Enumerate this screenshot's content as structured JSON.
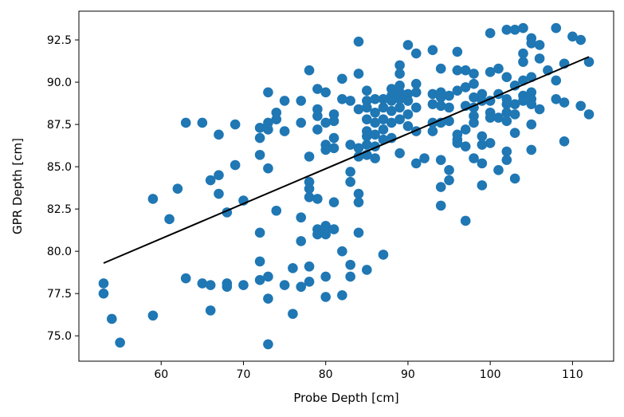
{
  "chart_data": {
    "type": "scatter",
    "title": "",
    "xlabel": "Probe Depth [cm]",
    "ylabel": "GPR Depth [cm]",
    "xlim": [
      50,
      115
    ],
    "ylim": [
      73.5,
      94.2
    ],
    "xticks": [
      60,
      70,
      80,
      90,
      100,
      110
    ],
    "yticks": [
      75.0,
      77.5,
      80.0,
      82.5,
      85.0,
      87.5,
      90.0,
      92.5
    ],
    "grid": false,
    "legend": "none",
    "colors": {
      "points": "#1f77b4",
      "fit_line": "#000000",
      "axes": "#000000"
    },
    "series": [
      {
        "values": [
          [
            53,
            78.1
          ],
          [
            53,
            77.5
          ],
          [
            54,
            76.0
          ],
          [
            55,
            74.6
          ],
          [
            59,
            83.1
          ],
          [
            59,
            76.2
          ],
          [
            61,
            81.9
          ],
          [
            62,
            83.7
          ],
          [
            63,
            87.6
          ],
          [
            63,
            78.4
          ],
          [
            65,
            87.6
          ],
          [
            65,
            78.1
          ],
          [
            66,
            84.2
          ],
          [
            66,
            78.0
          ],
          [
            66,
            76.5
          ],
          [
            67,
            86.9
          ],
          [
            67,
            84.5
          ],
          [
            67,
            83.4
          ],
          [
            68,
            82.3
          ],
          [
            68,
            78.1
          ],
          [
            68,
            77.9
          ],
          [
            69,
            87.5
          ],
          [
            69,
            85.1
          ],
          [
            70,
            83.0
          ],
          [
            70,
            78.0
          ],
          [
            72,
            87.3
          ],
          [
            72,
            86.7
          ],
          [
            72,
            85.7
          ],
          [
            72,
            81.1
          ],
          [
            72,
            79.4
          ],
          [
            72,
            78.3
          ],
          [
            73,
            89.4
          ],
          [
            73,
            87.6
          ],
          [
            73,
            87.2
          ],
          [
            73,
            84.9
          ],
          [
            73,
            78.5
          ],
          [
            73,
            77.2
          ],
          [
            73,
            74.5
          ],
          [
            74,
            88.2
          ],
          [
            74,
            87.8
          ],
          [
            74,
            82.4
          ],
          [
            75,
            88.9
          ],
          [
            75,
            87.1
          ],
          [
            75,
            78.0
          ],
          [
            76,
            79.0
          ],
          [
            76,
            76.3
          ],
          [
            77,
            88.9
          ],
          [
            77,
            87.6
          ],
          [
            77,
            82.0
          ],
          [
            77,
            80.6
          ],
          [
            77,
            77.9
          ],
          [
            78,
            90.7
          ],
          [
            78,
            85.6
          ],
          [
            78,
            84.1
          ],
          [
            78,
            83.7
          ],
          [
            78,
            83.2
          ],
          [
            78,
            79.1
          ],
          [
            78,
            78.2
          ],
          [
            79,
            89.6
          ],
          [
            79,
            88.4
          ],
          [
            79,
            88.0
          ],
          [
            79,
            87.2
          ],
          [
            79,
            83.1
          ],
          [
            79,
            81.3
          ],
          [
            79,
            81.0
          ],
          [
            80,
            89.4
          ],
          [
            80,
            87.6
          ],
          [
            80,
            86.3
          ],
          [
            80,
            86.0
          ],
          [
            80,
            81.5
          ],
          [
            80,
            81.2
          ],
          [
            80,
            81.0
          ],
          [
            80,
            78.5
          ],
          [
            80,
            77.3
          ],
          [
            81,
            88.1
          ],
          [
            81,
            87.7
          ],
          [
            81,
            86.7
          ],
          [
            81,
            86.1
          ],
          [
            81,
            82.9
          ],
          [
            81,
            81.3
          ],
          [
            82,
            90.2
          ],
          [
            82,
            89.0
          ],
          [
            82,
            80.0
          ],
          [
            82,
            77.4
          ],
          [
            83,
            88.9
          ],
          [
            83,
            86.3
          ],
          [
            83,
            84.7
          ],
          [
            83,
            84.1
          ],
          [
            83,
            79.2
          ],
          [
            83,
            78.5
          ],
          [
            84,
            92.4
          ],
          [
            84,
            90.5
          ],
          [
            84,
            88.4
          ],
          [
            84,
            86.1
          ],
          [
            84,
            85.6
          ],
          [
            84,
            83.4
          ],
          [
            84,
            82.9
          ],
          [
            84,
            81.1
          ],
          [
            85,
            89.5
          ],
          [
            85,
            88.9
          ],
          [
            85,
            88.5
          ],
          [
            85,
            87.8
          ],
          [
            85,
            87.1
          ],
          [
            85,
            86.8
          ],
          [
            85,
            86.3
          ],
          [
            85,
            85.7
          ],
          [
            85,
            78.9
          ],
          [
            86,
            89.0
          ],
          [
            86,
            88.2
          ],
          [
            86,
            87.6
          ],
          [
            86,
            86.9
          ],
          [
            86,
            86.2
          ],
          [
            86,
            85.5
          ],
          [
            87,
            89.0
          ],
          [
            87,
            88.5
          ],
          [
            87,
            87.8
          ],
          [
            87,
            87.2
          ],
          [
            87,
            86.6
          ],
          [
            87,
            79.8
          ],
          [
            88,
            89.6
          ],
          [
            88,
            89.2
          ],
          [
            88,
            88.9
          ],
          [
            88,
            88.3
          ],
          [
            88,
            87.6
          ],
          [
            88,
            86.7
          ],
          [
            89,
            91.0
          ],
          [
            89,
            90.5
          ],
          [
            89,
            89.8
          ],
          [
            89,
            89.4
          ],
          [
            89,
            89.0
          ],
          [
            89,
            88.5
          ],
          [
            89,
            87.8
          ],
          [
            89,
            85.8
          ],
          [
            90,
            92.2
          ],
          [
            90,
            89.3
          ],
          [
            90,
            88.9
          ],
          [
            90,
            88.1
          ],
          [
            90,
            87.4
          ],
          [
            91,
            91.7
          ],
          [
            91,
            89.9
          ],
          [
            91,
            89.4
          ],
          [
            91,
            88.5
          ],
          [
            91,
            87.1
          ],
          [
            91,
            85.2
          ],
          [
            92,
            85.5
          ],
          [
            93,
            91.9
          ],
          [
            93,
            89.3
          ],
          [
            93,
            88.7
          ],
          [
            93,
            87.6
          ],
          [
            93,
            87.1
          ],
          [
            94,
            90.8
          ],
          [
            94,
            89.4
          ],
          [
            94,
            89.1
          ],
          [
            94,
            88.6
          ],
          [
            94,
            87.6
          ],
          [
            94,
            85.4
          ],
          [
            94,
            83.8
          ],
          [
            94,
            82.7
          ],
          [
            95,
            89.2
          ],
          [
            95,
            88.5
          ],
          [
            95,
            87.7
          ],
          [
            95,
            84.8
          ],
          [
            95,
            84.2
          ],
          [
            96,
            91.8
          ],
          [
            96,
            90.7
          ],
          [
            96,
            89.5
          ],
          [
            96,
            86.9
          ],
          [
            96,
            86.6
          ],
          [
            96,
            86.4
          ],
          [
            97,
            90.7
          ],
          [
            97,
            89.7
          ],
          [
            97,
            88.6
          ],
          [
            97,
            87.2
          ],
          [
            97,
            86.2
          ],
          [
            97,
            81.8
          ],
          [
            98,
            90.5
          ],
          [
            98,
            89.9
          ],
          [
            98,
            89.1
          ],
          [
            98,
            88.5
          ],
          [
            98,
            88.0
          ],
          [
            98,
            87.6
          ],
          [
            98,
            85.5
          ],
          [
            99,
            89.3
          ],
          [
            99,
            88.9
          ],
          [
            99,
            86.8
          ],
          [
            99,
            86.3
          ],
          [
            99,
            85.2
          ],
          [
            99,
            83.9
          ],
          [
            100,
            92.9
          ],
          [
            100,
            90.6
          ],
          [
            100,
            88.9
          ],
          [
            100,
            88.2
          ],
          [
            100,
            87.9
          ],
          [
            100,
            86.4
          ],
          [
            101,
            90.8
          ],
          [
            101,
            89.3
          ],
          [
            101,
            87.9
          ],
          [
            101,
            84.8
          ],
          [
            102,
            93.1
          ],
          [
            102,
            90.3
          ],
          [
            102,
            89.0
          ],
          [
            102,
            88.7
          ],
          [
            102,
            88.2
          ],
          [
            102,
            87.7
          ],
          [
            102,
            85.9
          ],
          [
            102,
            85.4
          ],
          [
            103,
            93.1
          ],
          [
            103,
            89.8
          ],
          [
            103,
            88.7
          ],
          [
            103,
            88.1
          ],
          [
            103,
            87.0
          ],
          [
            103,
            84.3
          ],
          [
            104,
            93.2
          ],
          [
            104,
            91.7
          ],
          [
            104,
            91.2
          ],
          [
            104,
            90.1
          ],
          [
            104,
            89.2
          ],
          [
            104,
            88.9
          ],
          [
            105,
            92.6
          ],
          [
            105,
            92.3
          ],
          [
            105,
            90.3
          ],
          [
            105,
            89.4
          ],
          [
            105,
            89.0
          ],
          [
            105,
            88.7
          ],
          [
            105,
            87.5
          ],
          [
            105,
            86.0
          ],
          [
            106,
            92.2
          ],
          [
            106,
            91.4
          ],
          [
            106,
            88.4
          ],
          [
            107,
            90.7
          ],
          [
            108,
            93.2
          ],
          [
            108,
            90.1
          ],
          [
            108,
            89.0
          ],
          [
            109,
            91.1
          ],
          [
            109,
            88.8
          ],
          [
            109,
            86.5
          ],
          [
            110,
            92.7
          ],
          [
            111,
            92.5
          ],
          [
            111,
            88.6
          ],
          [
            112,
            91.2
          ],
          [
            112,
            88.1
          ]
        ]
      }
    ],
    "fit_line": {
      "x": [
        53,
        112
      ],
      "y": [
        79.3,
        91.5
      ]
    }
  }
}
